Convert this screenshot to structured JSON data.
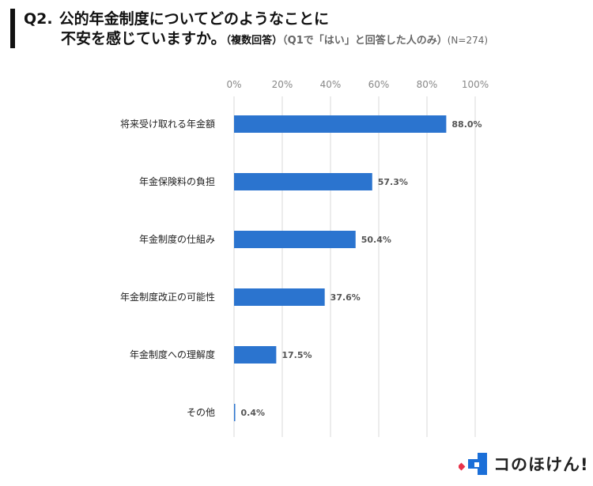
{
  "title": {
    "q_label": "Q2.",
    "line1": "公的年金制度についてどのようなことに",
    "line2": "不安を感じていますか。",
    "multi": "（複数回答）",
    "condition": "（Q1で「はい」と回答した人のみ）",
    "n": "(N=274)"
  },
  "chart_data": {
    "type": "bar",
    "orientation": "horizontal",
    "categories": [
      "将来受け取れる年金額",
      "年金保険料の負担",
      "年金制度の仕組み",
      "年金制度改正の可能性",
      "年金制度への理解度",
      "その他"
    ],
    "values": [
      88.0,
      57.3,
      50.4,
      37.6,
      17.5,
      0.4
    ],
    "value_labels": [
      "88.0%",
      "57.3%",
      "50.4%",
      "37.6%",
      "17.5%",
      "0.4%"
    ],
    "xlim": [
      0,
      100
    ],
    "xticks": [
      0,
      20,
      40,
      60,
      80,
      100
    ],
    "xtick_labels": [
      "0%",
      "20%",
      "40%",
      "60%",
      "80%",
      "100%"
    ],
    "grid": true,
    "bar_color": "#2b74cf",
    "grid_color": "#d9d9d9"
  },
  "logo": {
    "text": "コのほけん!",
    "colors": {
      "red": "#e8334a",
      "blue": "#1b6fd8"
    }
  }
}
